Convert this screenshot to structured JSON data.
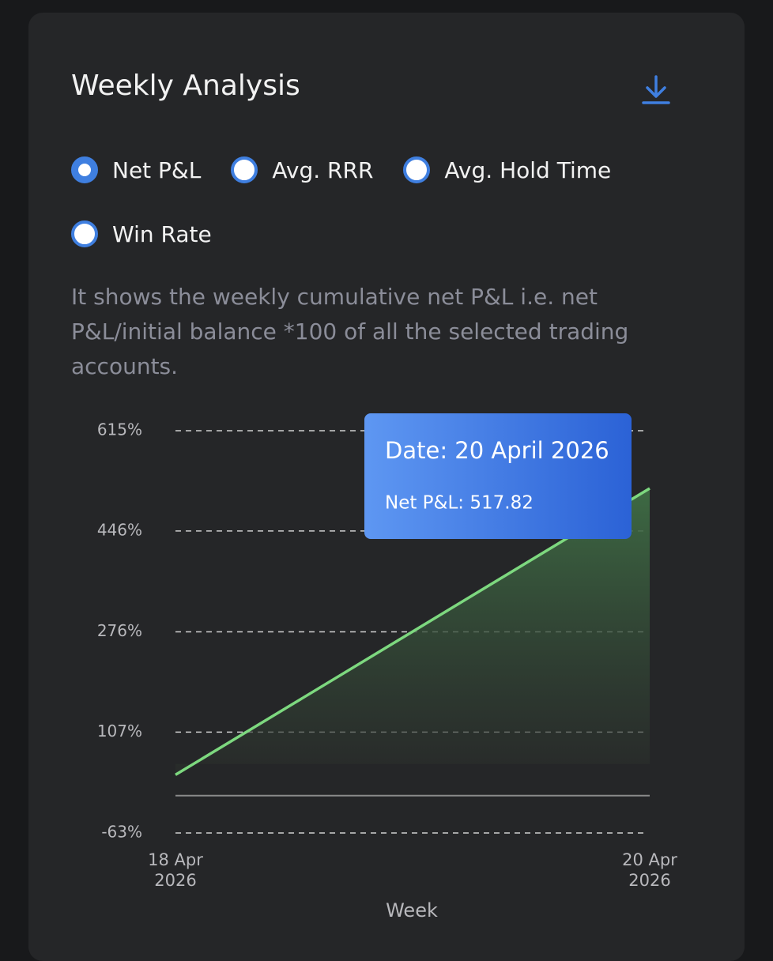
{
  "header": {
    "title": "Weekly Analysis"
  },
  "options": {
    "items": [
      "Net P&L",
      "Avg. RRR",
      "Avg. Hold Time",
      "Win Rate"
    ],
    "selected": 0
  },
  "description": "It shows the weekly cumulative net P&L i.e. net P&L/initial balance *100 of all the selected trading accounts.",
  "chart_data": {
    "type": "area",
    "categories": [
      "18 Apr 2026",
      "20 Apr 2026"
    ],
    "values": [
      35,
      517.82
    ],
    "color": "#7dd87f",
    "xlabel": "Week",
    "ylim": [
      -63,
      615
    ],
    "yticks": [
      {
        "value": 615,
        "label": "615%"
      },
      {
        "value": 446,
        "label": "446%"
      },
      {
        "value": 276,
        "label": "276%"
      },
      {
        "value": 107,
        "label": "107%"
      },
      {
        "value": -63,
        "label": "-63%"
      }
    ],
    "grid": true,
    "tooltip": {
      "date": "Date: 20 April 2026",
      "value": "Net P&L: 517.82"
    }
  }
}
